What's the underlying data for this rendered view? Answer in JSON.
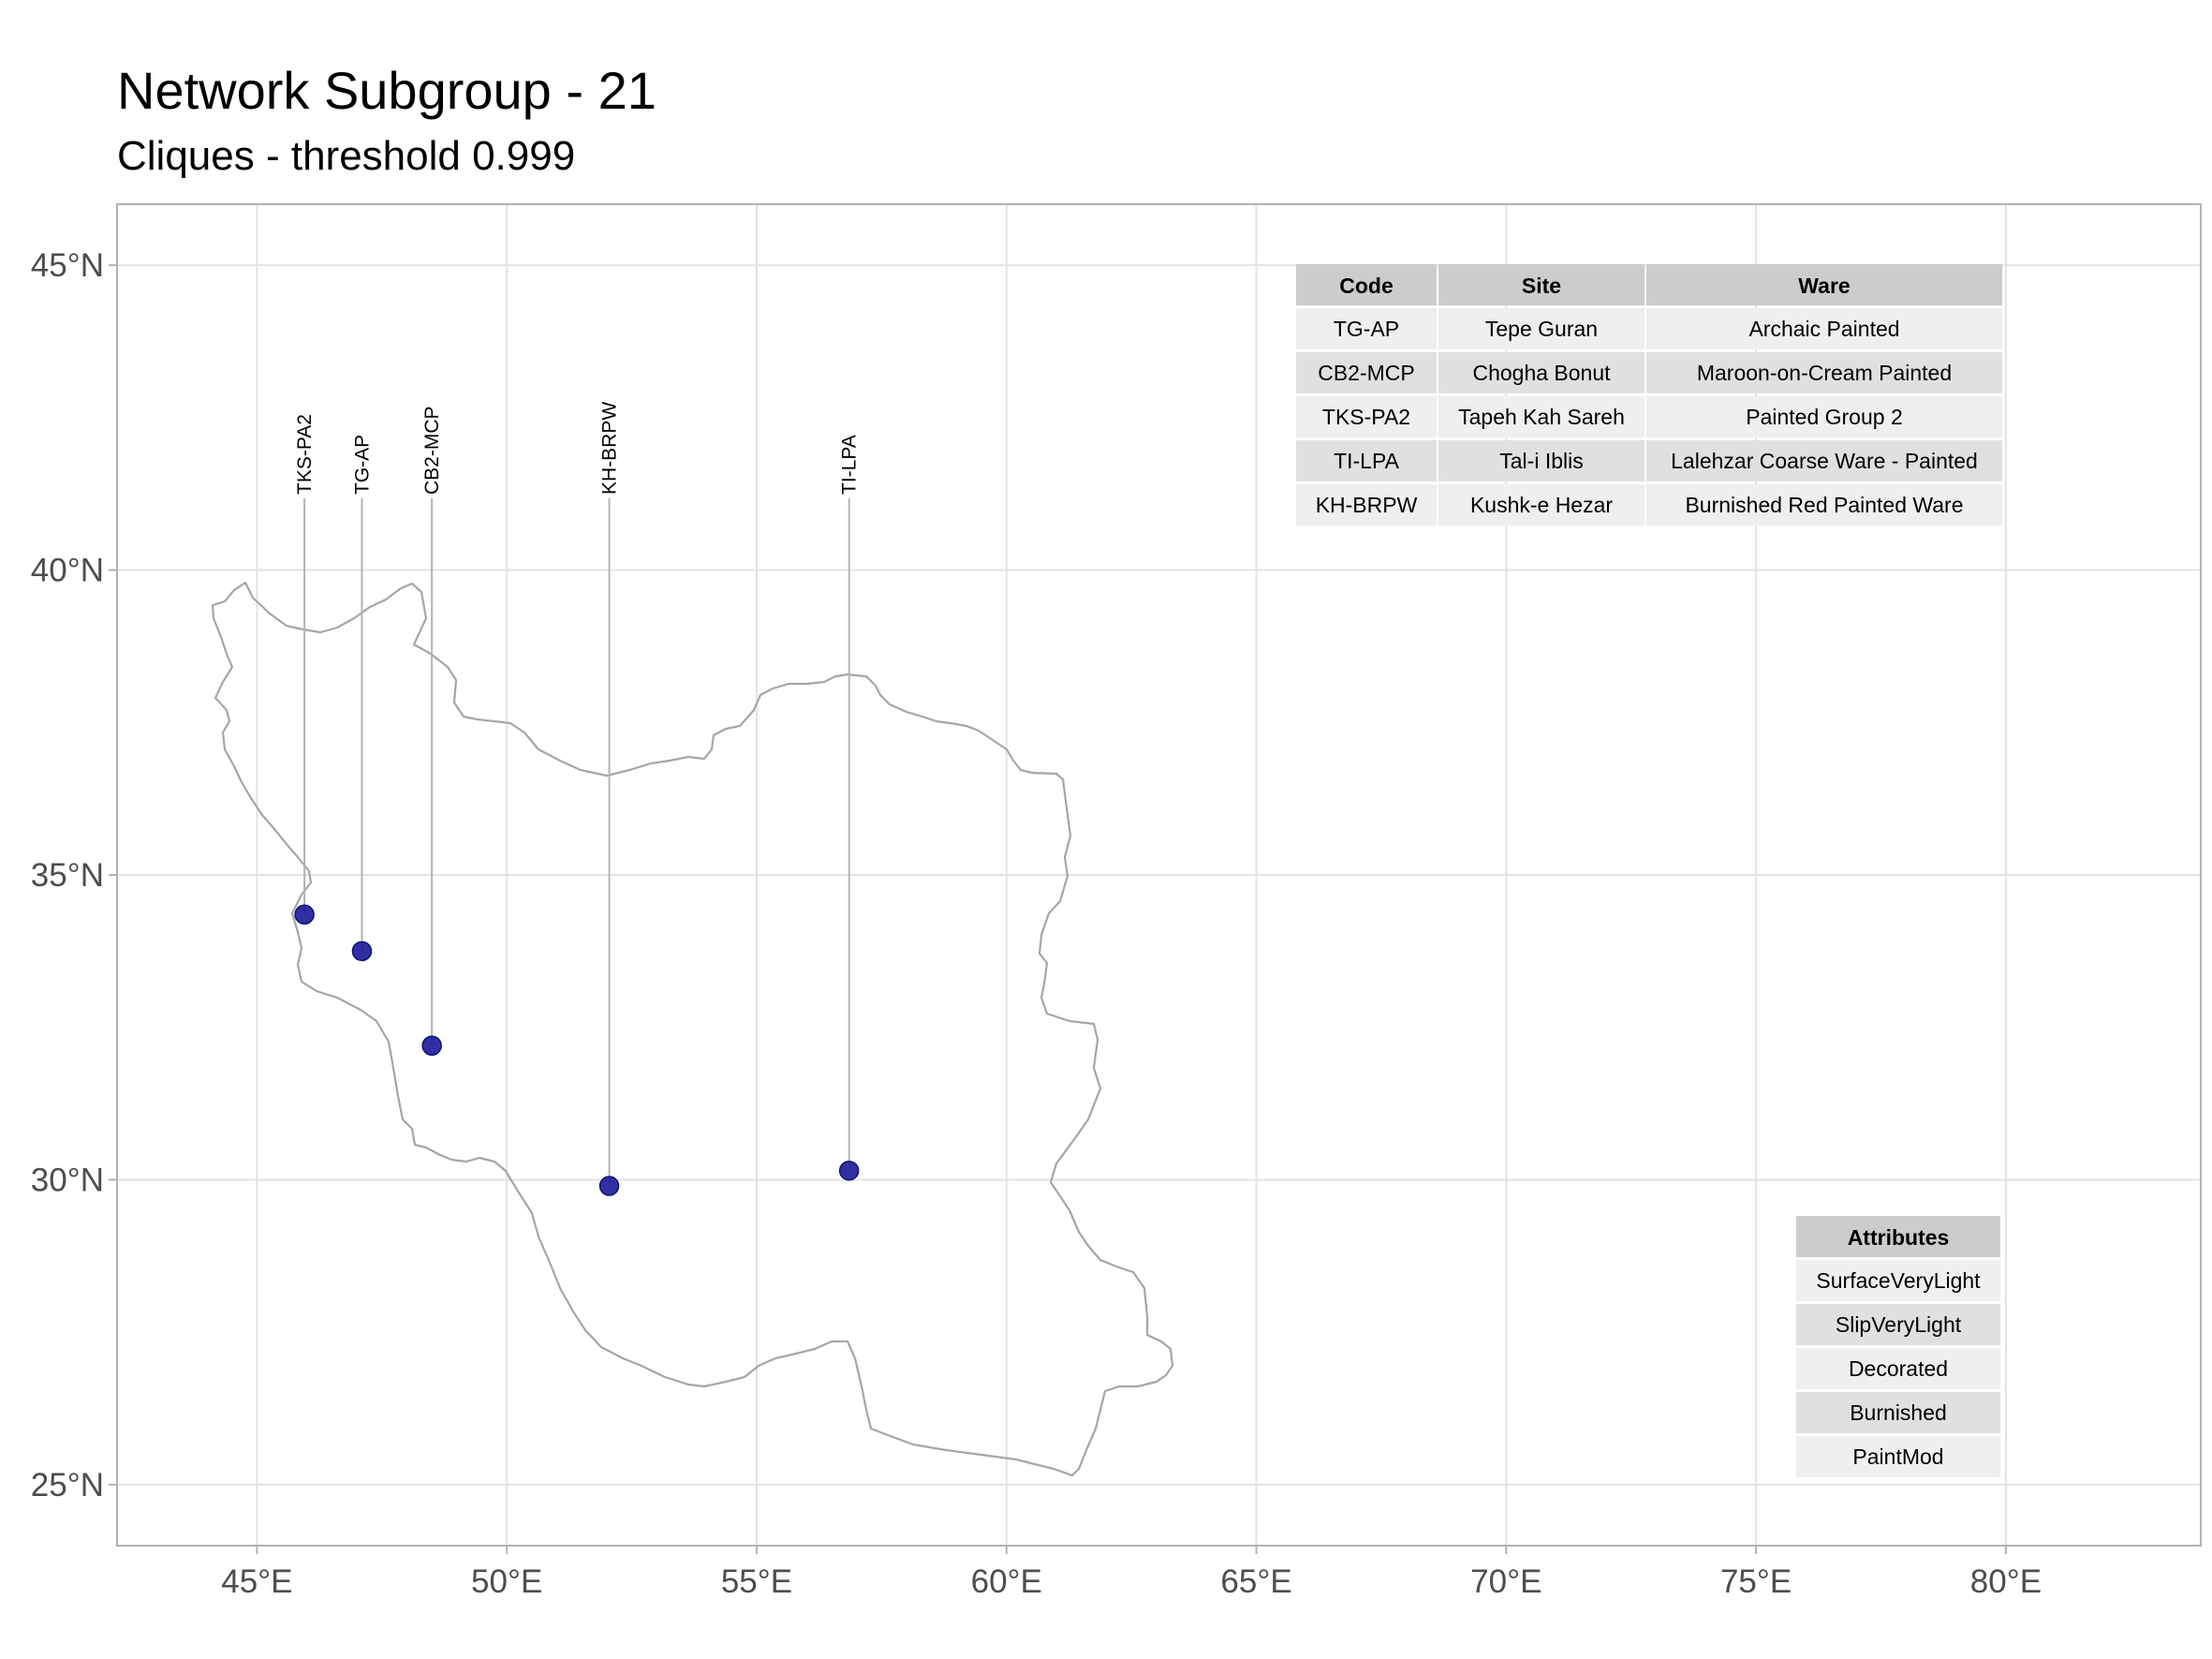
{
  "title": "Network Subgroup - 21",
  "subtitle": "Cliques - threshold 0.999",
  "map": {
    "lon_ticks": [
      {
        "value": 45,
        "label": "45°E"
      },
      {
        "value": 50,
        "label": "50°E"
      },
      {
        "value": 55,
        "label": "55°E"
      },
      {
        "value": 60,
        "label": "60°E"
      },
      {
        "value": 65,
        "label": "65°E"
      },
      {
        "value": 70,
        "label": "70°E"
      },
      {
        "value": 75,
        "label": "75°E"
      },
      {
        "value": 80,
        "label": "80°E"
      }
    ],
    "lat_ticks": [
      {
        "value": 45,
        "label": "45°N"
      },
      {
        "value": 40,
        "label": "40°N"
      },
      {
        "value": 35,
        "label": "35°N"
      },
      {
        "value": 30,
        "label": "30°N"
      },
      {
        "value": 25,
        "label": "25°N"
      }
    ],
    "lon_range": [
      42.2,
      83.9
    ],
    "lat_range": [
      24.0,
      46.0
    ],
    "point_color": "#1a1a9a",
    "outline_color": "#a6a6a6",
    "sites": [
      {
        "code": "TKS-PA2",
        "lon": 45.95,
        "lat": 34.35
      },
      {
        "code": "TG-AP",
        "lon": 47.1,
        "lat": 33.75
      },
      {
        "code": "CB2-MCP",
        "lon": 48.5,
        "lat": 32.2
      },
      {
        "code": "KH-BRPW",
        "lon": 52.05,
        "lat": 29.9
      },
      {
        "code": "TI-LPA",
        "lon": 56.85,
        "lat": 30.15
      }
    ]
  },
  "sites_table": {
    "headers": [
      "Code",
      "Site",
      "Ware"
    ],
    "rows": [
      [
        "TG-AP",
        "Tepe Guran",
        "Archaic Painted"
      ],
      [
        "CB2-MCP",
        "Chogha Bonut",
        "Maroon-on-Cream Painted"
      ],
      [
        "TKS-PA2",
        "Tapeh Kah Sareh",
        "Painted Group 2"
      ],
      [
        "TI-LPA",
        "Tal-i Iblis",
        "Lalehzar Coarse Ware - Painted"
      ],
      [
        "KH-BRPW",
        "Kushk-e Hezar",
        "Burnished Red Painted Ware"
      ]
    ]
  },
  "attributes_table": {
    "header": "Attributes",
    "rows": [
      "SurfaceVeryLight",
      "SlipVeryLight",
      "Decorated",
      "Burnished",
      "PaintMod"
    ]
  }
}
